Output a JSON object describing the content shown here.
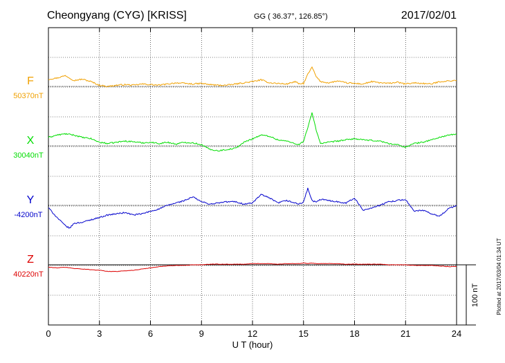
{
  "header": {
    "station": "Cheongyang (CYG)  [KRISS]",
    "coords": "GG ( 36.37°, 126.85°)",
    "date": "2017/02/01"
  },
  "footer": {
    "plotted_note": "Plotted at 2017/03/04 01:34 UT"
  },
  "chart_data": {
    "type": "line",
    "title": "Cheongyang (CYG)  [KRISS]",
    "xlabel": "U T (hour)",
    "ylabel": "",
    "xlim": [
      0,
      24
    ],
    "x_ticks": [
      "0",
      "3",
      "6",
      "9",
      "12",
      "15",
      "18",
      "21",
      "24"
    ],
    "grid": true,
    "scale_bar_label": "100 nT",
    "scale_bar_nT": 100,
    "x_hours": [
      0,
      0.5,
      1,
      1.25,
      1.5,
      2,
      2.5,
      3,
      3.5,
      4,
      4.5,
      5,
      5.5,
      6,
      6.5,
      7,
      7.5,
      8,
      8.5,
      9,
      9.5,
      10,
      10.5,
      11,
      11.5,
      12,
      12.5,
      13,
      13.5,
      14,
      14.5,
      14.75,
      15,
      15.25,
      15.5,
      15.75,
      16,
      16.5,
      17,
      17.5,
      18,
      18.5,
      19,
      19.5,
      20,
      20.5,
      21,
      21.5,
      22,
      22.5,
      23,
      23.5,
      24
    ],
    "series": [
      {
        "name": "F",
        "baseline_label": "50370nT",
        "color": "#f0a000",
        "values": [
          12,
          14,
          18,
          14,
          10,
          12,
          8,
          2,
          0,
          2,
          3,
          2,
          4,
          3,
          2,
          4,
          6,
          5,
          4,
          5,
          3,
          2,
          2,
          4,
          6,
          8,
          11,
          6,
          5,
          4,
          8,
          4,
          5,
          20,
          32,
          16,
          8,
          6,
          9,
          6,
          5,
          4,
          8,
          6,
          5,
          7,
          4,
          6,
          5,
          4,
          8,
          9,
          10
        ]
      },
      {
        "name": "X",
        "baseline_label": "30040nT",
        "color": "#00dd00",
        "values": [
          14,
          18,
          20,
          19,
          18,
          14,
          12,
          6,
          4,
          6,
          8,
          7,
          5,
          6,
          4,
          6,
          3,
          6,
          5,
          2,
          -6,
          -8,
          -6,
          -4,
          6,
          12,
          18,
          16,
          10,
          8,
          4,
          2,
          8,
          30,
          55,
          26,
          4,
          6,
          8,
          10,
          12,
          10,
          9,
          8,
          4,
          2,
          -2,
          4,
          6,
          10,
          14,
          18,
          19
        ]
      },
      {
        "name": "Y",
        "baseline_label": "-4200nT",
        "color": "#0000cc",
        "values": [
          -4,
          -20,
          -34,
          -38,
          -30,
          -28,
          -24,
          -20,
          -16,
          -14,
          -12,
          -16,
          -14,
          -10,
          -6,
          0,
          4,
          8,
          14,
          6,
          2,
          4,
          6,
          6,
          2,
          4,
          18,
          12,
          4,
          8,
          4,
          2,
          6,
          28,
          8,
          5,
          10,
          8,
          6,
          4,
          12,
          -8,
          -4,
          0,
          6,
          8,
          10,
          -10,
          -8,
          -14,
          -18,
          -6,
          0
        ]
      },
      {
        "name": "Z",
        "baseline_label": "40220nT",
        "color": "#dd0000",
        "values": [
          -4,
          -5,
          -4,
          -5,
          -6,
          -7,
          -8,
          -9,
          -11,
          -11,
          -10,
          -9,
          -7,
          -5,
          -3,
          -2,
          -1,
          -1,
          0,
          0,
          1,
          1,
          1,
          1,
          1,
          2,
          2,
          2,
          1,
          2,
          2,
          2,
          3,
          2,
          3,
          2,
          2,
          2,
          2,
          1,
          1,
          1,
          1,
          1,
          0,
          0,
          0,
          -1,
          -1,
          -1,
          -2,
          -3,
          -3
        ]
      }
    ]
  }
}
